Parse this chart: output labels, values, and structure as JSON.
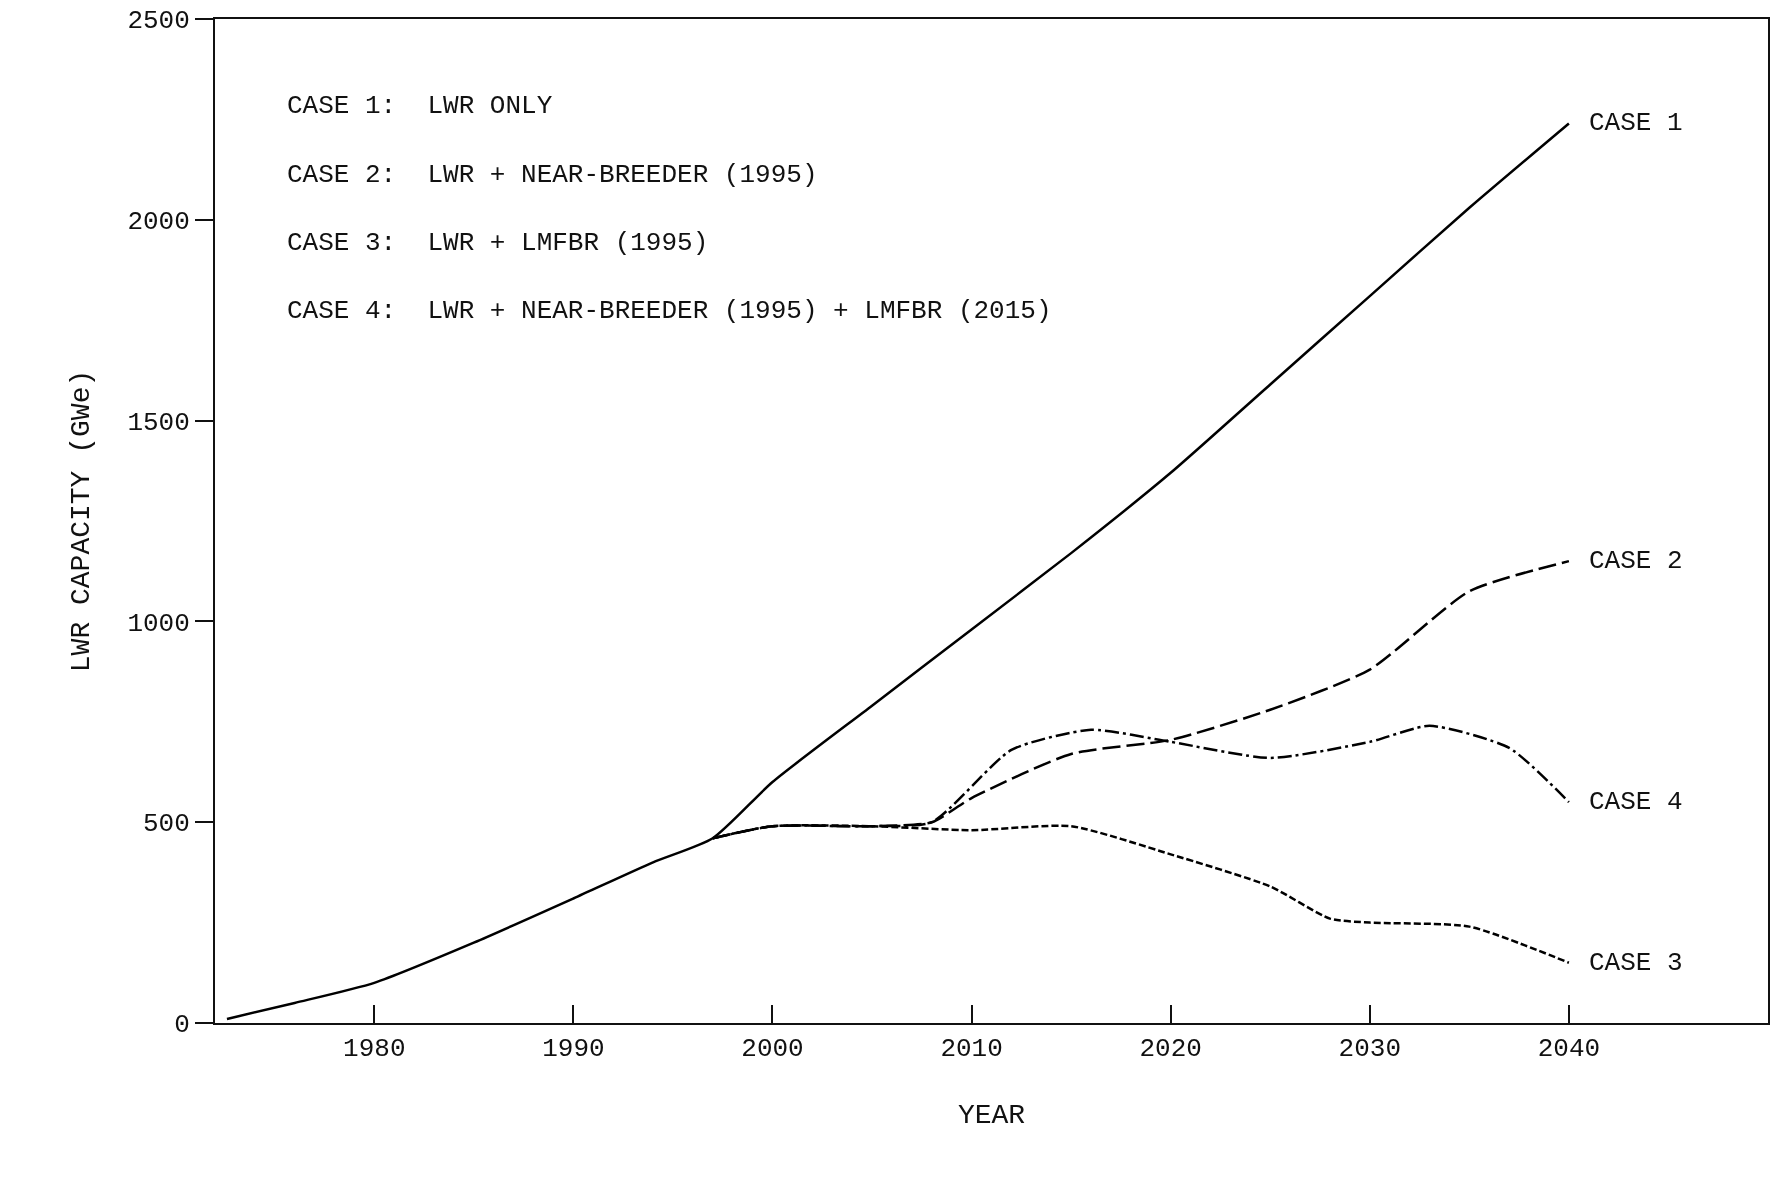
{
  "chart_data": {
    "type": "line",
    "xlabel": "YEAR",
    "ylabel": "LWR CAPACITY (GWe)",
    "annotations": [
      "CASE 1:  LWR ONLY",
      "CASE 2:  LWR + NEAR-BREEDER (1995)",
      "CASE 3:  LWR + LMFBR (1995)",
      "CASE 4:  LWR + NEAR-BREEDER (1995) + LMFBR (2015)"
    ],
    "xlim": [
      1972,
      2050
    ],
    "xticks": [
      1980,
      1990,
      2000,
      2010,
      2020,
      2030,
      2040
    ],
    "ylim": [
      0,
      2500
    ],
    "yticks": [
      0,
      500,
      1000,
      1500,
      2000,
      2500
    ],
    "legend": false,
    "marker": "none",
    "series": [
      {
        "name": "CASE 1",
        "color": "#000000",
        "line_style": "solid",
        "x": [
          1972.6,
          1976,
          1980,
          1985,
          1990,
          1994,
          1997,
          2000,
          2005,
          2010,
          2015,
          2020,
          2025,
          2030,
          2035,
          2040
        ],
        "values": [
          10,
          50,
          100,
          200,
          310,
          400,
          460,
          600,
          790,
          980,
          1170,
          1370,
          1590,
          1810,
          2030,
          2240
        ]
      },
      {
        "name": "CASE 2",
        "color": "#000000",
        "line_style": "dashed",
        "x": [
          1997,
          2000,
          2005,
          2008,
          2010,
          2015,
          2020,
          2025,
          2030,
          2035,
          2040
        ],
        "values": [
          460,
          490,
          490,
          500,
          560,
          670,
          705,
          780,
          880,
          1075,
          1150
        ]
      },
      {
        "name": "CASE 3",
        "color": "#000000",
        "line_style": "dotted",
        "x": [
          1997,
          2000,
          2005,
          2010,
          2015,
          2020,
          2025,
          2028,
          2030,
          2035,
          2040
        ],
        "values": [
          460,
          490,
          490,
          480,
          490,
          420,
          340,
          260,
          250,
          240,
          150
        ]
      },
      {
        "name": "CASE 4",
        "color": "#000000",
        "line_style": "dashdot",
        "x": [
          1997,
          2000,
          2005,
          2008,
          2012,
          2016,
          2020,
          2025,
          2030,
          2033,
          2037,
          2040
        ],
        "values": [
          460,
          490,
          490,
          500,
          680,
          730,
          700,
          660,
          700,
          740,
          685,
          550
        ]
      }
    ]
  }
}
